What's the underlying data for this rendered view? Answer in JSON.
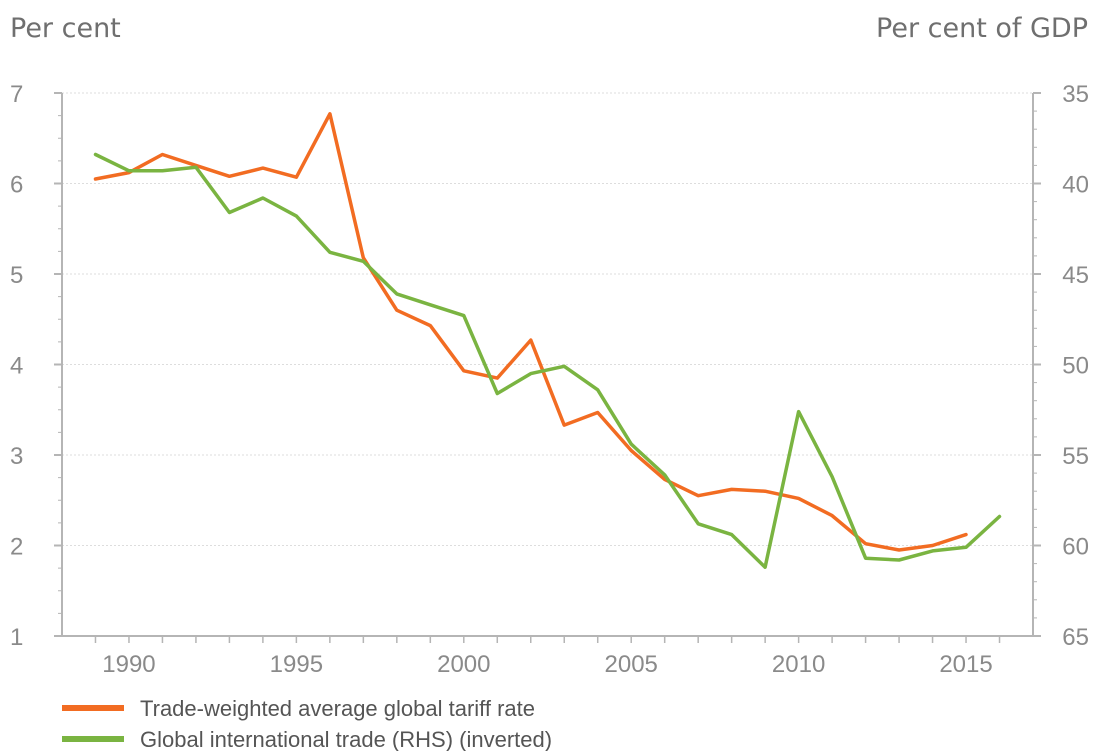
{
  "chart_data": {
    "type": "line",
    "title": "",
    "y_left_label": "Per cent",
    "y_right_label": "Per cent of GDP",
    "x": [
      1989,
      1990,
      1991,
      1992,
      1993,
      1994,
      1995,
      1996,
      1997,
      1998,
      1999,
      2000,
      2001,
      2002,
      2003,
      2004,
      2005,
      2006,
      2007,
      2008,
      2009,
      2010,
      2011,
      2012,
      2013,
      2014,
      2015,
      2016
    ],
    "x_ticks": [
      "1990",
      "1995",
      "2000",
      "2005",
      "2010",
      "2015"
    ],
    "y_left_ticks": [
      "7",
      "6",
      "5",
      "4",
      "3",
      "2",
      "1"
    ],
    "y_right_ticks": [
      "35",
      "40",
      "45",
      "50",
      "55",
      "60",
      "65"
    ],
    "y_left_range": [
      1,
      7
    ],
    "y_right_range": [
      65,
      35
    ],
    "y_right_inverted": true,
    "grid": "horizontal dotted",
    "legend_position": "bottom-left",
    "colors": {
      "tariff": "#f26c22",
      "trade": "#7ab441",
      "axis": "#b5b5b5",
      "grid": "#dddddd"
    },
    "series": [
      {
        "name": "Trade-weighted average global tariff rate",
        "axis": "left",
        "color": "#f26c22",
        "values": [
          6.05,
          6.12,
          6.32,
          6.2,
          6.08,
          6.17,
          6.07,
          6.77,
          5.18,
          4.6,
          4.43,
          3.93,
          3.85,
          4.27,
          3.33,
          3.47,
          3.05,
          2.73,
          2.55,
          2.62,
          2.6,
          2.52,
          2.33,
          2.02,
          1.95,
          2.0,
          2.12,
          null
        ]
      },
      {
        "name": "Global international trade (RHS) (inverted)",
        "axis": "right",
        "color": "#7ab441",
        "values": [
          38.4,
          39.3,
          39.3,
          39.1,
          41.6,
          40.8,
          41.8,
          43.8,
          44.3,
          46.1,
          46.7,
          47.3,
          51.6,
          50.5,
          50.1,
          51.4,
          54.4,
          56.1,
          58.8,
          59.4,
          61.2,
          52.6,
          56.2,
          60.7,
          60.8,
          60.3,
          60.1,
          58.4
        ]
      }
    ]
  }
}
